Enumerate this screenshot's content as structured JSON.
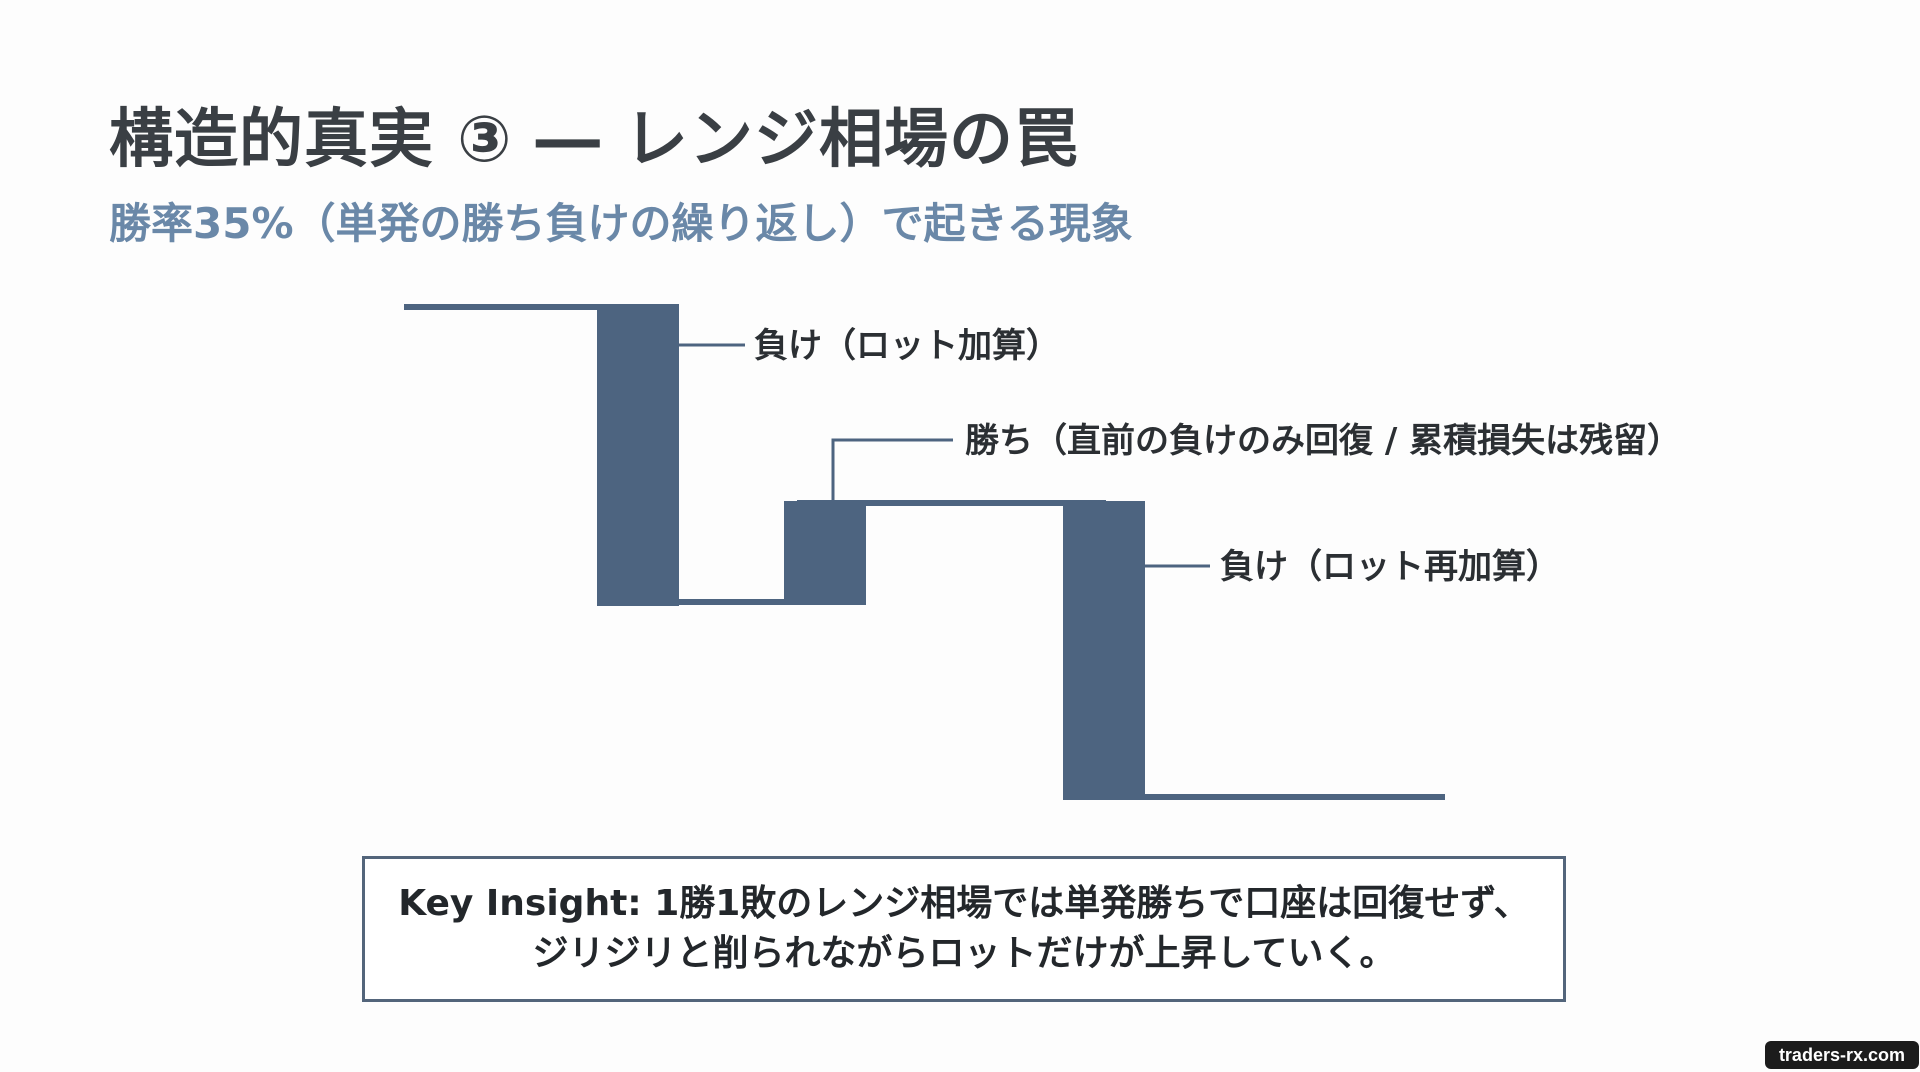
{
  "slide": {
    "title": "構造的真実 ③ ― レンジ相場の罠",
    "subtitle": "勝率35%（単発の勝ち負けの繰り返し）で起きる現象"
  },
  "diagram": {
    "labels": {
      "loss1": "負け（ロット加算）",
      "win": "勝ち（直前の負けのみ回復 / 累積損失は残留）",
      "loss2": "負け（ロット再加算）"
    },
    "colors": {
      "bar": "#4d6480",
      "line": "#4d6480",
      "connector": "#4d6480"
    }
  },
  "insight": {
    "line1": "Key Insight: 1勝1敗のレンジ相場では単発勝ちで口座は回復せず、",
    "line2": "ジリジリと削られながらロットだけが上昇していく。"
  },
  "watermark": {
    "text": "traders-rx.com"
  }
}
